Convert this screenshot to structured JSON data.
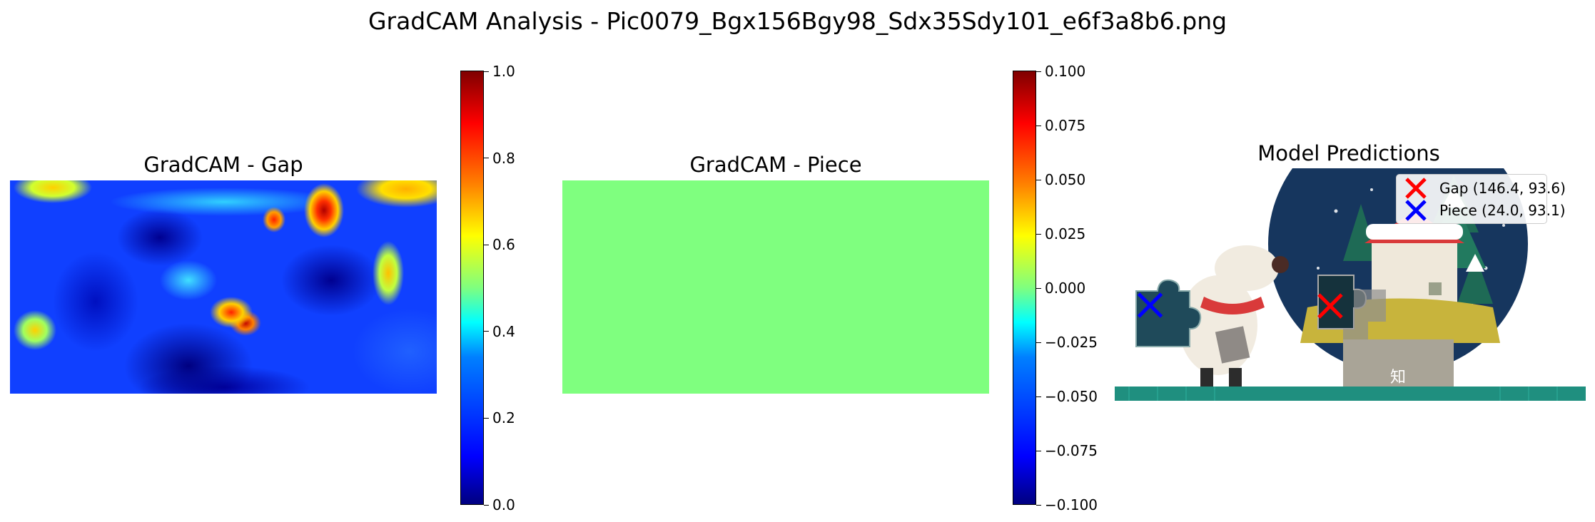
{
  "title": "GradCAM Analysis - Pic0079_Bgx156Bgy98_Sdx35Sdy101_e6f3a8b6.png",
  "panels": {
    "gap": {
      "title": "GradCAM - Gap"
    },
    "piece": {
      "title": "GradCAM - Piece"
    },
    "predictions": {
      "title": "Model Predictions"
    }
  },
  "chart_data": [
    {
      "type": "heatmap",
      "title": "GradCAM - Gap",
      "colormap": "jet",
      "colorbar": {
        "min": 0.0,
        "max": 1.0,
        "ticks": [
          "0.0",
          "0.2",
          "0.4",
          "0.6",
          "0.8",
          "1.0"
        ],
        "tick_values": [
          0.0,
          0.2,
          0.4,
          0.6,
          0.8,
          1.0
        ]
      },
      "hotspots": "mostly low activation (0.1–0.3); high activation (~0.8–1.0) near upper-right area and center; yellow band along top edge",
      "axes": "off"
    },
    {
      "type": "heatmap",
      "title": "GradCAM - Piece",
      "colormap": "jet",
      "uniform_value": 0.0,
      "colorbar": {
        "min": -0.1,
        "max": 0.1,
        "ticks": [
          "−0.100",
          "−0.075",
          "−0.050",
          "−0.025",
          "0.000",
          "0.025",
          "0.050",
          "0.075",
          "0.100"
        ],
        "tick_values": [
          -0.1,
          -0.075,
          -0.05,
          -0.025,
          0.0,
          0.025,
          0.05,
          0.075,
          0.1
        ]
      },
      "axes": "off"
    },
    {
      "type": "scatter",
      "title": "Model Predictions",
      "axes": "off",
      "series": [
        {
          "name": "Gap (146.4, 93.6)",
          "marker": "x",
          "color": "#ff0000",
          "x": [
            146.4
          ],
          "y": [
            93.6
          ]
        },
        {
          "name": "Piece (24.0, 93.1)",
          "marker": "x",
          "color": "#0000ff",
          "x": [
            24.0
          ],
          "y": [
            93.1
          ]
        }
      ],
      "legend": "top-right",
      "background_image_text": "知"
    }
  ],
  "colors": {
    "gap_marker": "#ff0000",
    "piece_marker": "#0000ff"
  }
}
